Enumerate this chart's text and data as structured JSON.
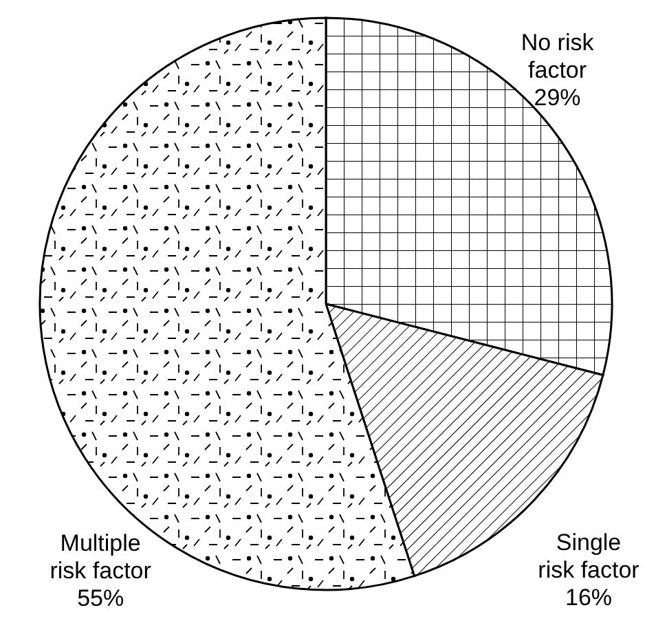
{
  "chart_data": {
    "type": "pie",
    "categories": [
      "No risk factor",
      "Single risk factor",
      "Multiple risk factor"
    ],
    "values": [
      29,
      16,
      55
    ],
    "colors": [
      "#ffffff",
      "#ffffff",
      "#ffffff"
    ],
    "value_labels": [
      "29%",
      "16%",
      "55%"
    ]
  }
}
